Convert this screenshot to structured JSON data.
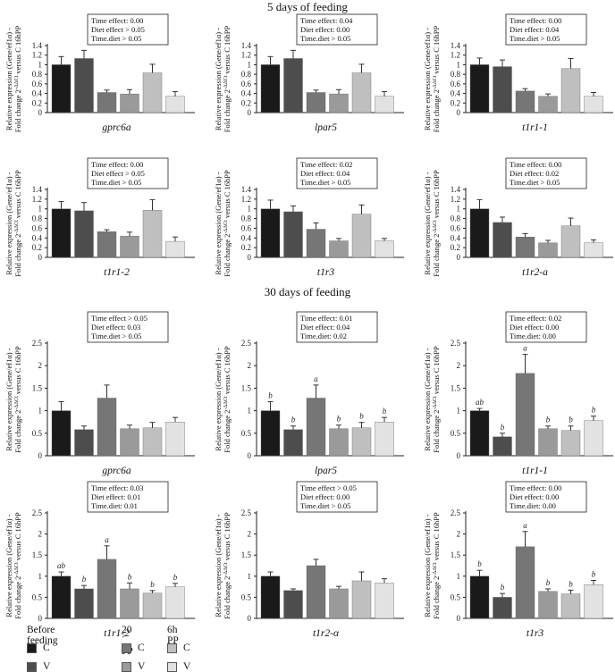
{
  "section_titles": [
    "5 days of feeding",
    "30 days of feeding"
  ],
  "y_label_line1": "Relative expression (Gene/ef1α) -",
  "y_label_line2": "Fold change 2",
  "y_label_sup": "-ΔΔCt",
  "y_label_tail": " versus C 16hPP",
  "colors": [
    "#1a1a1a",
    "#4d4d4d",
    "#767676",
    "#9a9a9a",
    "#bfbfbf",
    "#e2e2e2"
  ],
  "legend": {
    "groups": [
      "Before feeding",
      "20´ PP",
      "6h PP"
    ],
    "items": [
      "C",
      "V"
    ]
  },
  "chart_data": [
    {
      "type": "bar",
      "title": "gprc6a",
      "section": "5 days",
      "categories": [
        "C before",
        "V before",
        "C 20´PP",
        "V 20´PP",
        "C 6hPP",
        "V 6hPP"
      ],
      "values": [
        1.0,
        1.13,
        0.42,
        0.39,
        0.83,
        0.34
      ],
      "errors": [
        0.17,
        0.17,
        0.05,
        0.09,
        0.18,
        0.1
      ],
      "letters": [],
      "ylim": [
        0,
        1.4
      ],
      "yticks": [
        "0",
        "0.2",
        "0.4",
        "0.6",
        "0.8",
        "1",
        "1.2",
        "1.4"
      ],
      "stats": [
        "Time effect: 0.00",
        "Diet effect > 0.05",
        "Time.diet > 0.05"
      ]
    },
    {
      "type": "bar",
      "title": "lpar5",
      "section": "5 days",
      "categories": [
        "C before",
        "V before",
        "C 20´PP",
        "V 20´PP",
        "C 6hPP",
        "V 6hPP"
      ],
      "values": [
        1.0,
        1.13,
        0.42,
        0.39,
        0.83,
        0.34
      ],
      "errors": [
        0.17,
        0.17,
        0.05,
        0.09,
        0.18,
        0.1
      ],
      "letters": [],
      "ylim": [
        0,
        1.4
      ],
      "yticks": [
        "0",
        "0.2",
        "0.4",
        "0.6",
        "0.8",
        "1",
        "1.2",
        "1.4"
      ],
      "stats": [
        "Time effect: 0.04",
        "Diet effect: 0.00",
        "Time.diet > 0.05"
      ]
    },
    {
      "type": "bar",
      "title": "t1r1-1",
      "section": "5 days",
      "categories": [
        "C before",
        "V before",
        "C 20´PP",
        "V 20´PP",
        "C 6hPP",
        "V 6hPP"
      ],
      "values": [
        1.0,
        0.96,
        0.45,
        0.34,
        0.92,
        0.34
      ],
      "errors": [
        0.14,
        0.14,
        0.05,
        0.05,
        0.21,
        0.08
      ],
      "letters": [],
      "ylim": [
        0,
        1.4
      ],
      "yticks": [
        "0",
        "0.2",
        "0.4",
        "0.6",
        "0.8",
        "1",
        "1.2",
        "1.4"
      ],
      "stats": [
        "Time effect: 0.00",
        "Diet effect: 0.04",
        "Time.diet > 0.05"
      ]
    },
    {
      "type": "bar",
      "title": "t1r1-2",
      "section": "5 days",
      "categories": [
        "C before",
        "V before",
        "C 20´PP",
        "V 20´PP",
        "C 6hPP",
        "V 6hPP"
      ],
      "values": [
        1.0,
        0.96,
        0.53,
        0.44,
        0.97,
        0.33
      ],
      "errors": [
        0.15,
        0.17,
        0.04,
        0.08,
        0.22,
        0.09
      ],
      "letters": [],
      "ylim": [
        0,
        1.4
      ],
      "yticks": [
        "0",
        "0.2",
        "0.4",
        "0.6",
        "0.8",
        "1",
        "1.2",
        "1.4"
      ],
      "stats": [
        "Time effect: 0.00",
        "Diet effect > 0.05",
        "Time.diet > 0.05"
      ]
    },
    {
      "type": "bar",
      "title": "t1r3",
      "section": "5 days",
      "categories": [
        "C before",
        "V before",
        "C 20´PP",
        "V 20´PP",
        "C 6hPP",
        "V 6hPP"
      ],
      "values": [
        1.0,
        0.94,
        0.58,
        0.34,
        0.89,
        0.34
      ],
      "errors": [
        0.18,
        0.12,
        0.13,
        0.05,
        0.19,
        0.05
      ],
      "letters": [],
      "ylim": [
        0,
        1.4
      ],
      "yticks": [
        "0",
        "0.2",
        "0.4",
        "0.6",
        "0.8",
        "1",
        "1.2",
        "1.4"
      ],
      "stats": [
        "Time effect: 0.02",
        "Diet effect: 0.04",
        "Time.diet > 0.05"
      ]
    },
    {
      "type": "bar",
      "title": "t1r2-a",
      "section": "5 days",
      "categories": [
        "C before",
        "V before",
        "C 20´PP",
        "V 20´PP",
        "C 6hPP",
        "V 6hPP"
      ],
      "values": [
        1.0,
        0.72,
        0.42,
        0.3,
        0.65,
        0.3
      ],
      "errors": [
        0.19,
        0.11,
        0.07,
        0.05,
        0.16,
        0.06
      ],
      "letters": [],
      "ylim": [
        0,
        1.4
      ],
      "yticks": [
        "0",
        "0.2",
        "0.4",
        "0.6",
        "0.8",
        "1",
        "1.2",
        "1.4"
      ],
      "stats": [
        "Time effect: 0.00",
        "Diet effect: 0.02",
        "Time.diet > 0.05"
      ]
    },
    {
      "type": "bar",
      "title": "gprc6a",
      "section": "30 days",
      "categories": [
        "C before",
        "V before",
        "C 20´PP",
        "V 20´PP",
        "C 6hPP",
        "V 6hPP"
      ],
      "values": [
        1.0,
        0.58,
        1.28,
        0.6,
        0.62,
        0.75
      ],
      "errors": [
        0.2,
        0.08,
        0.29,
        0.08,
        0.12,
        0.1
      ],
      "letters": [],
      "ylim": [
        0,
        2.5
      ],
      "yticks": [
        "0",
        "0.5",
        "1",
        "1.5",
        "2",
        "2.5"
      ],
      "stats": [
        "Time effect > 0.05",
        "Diet effect: 0.03",
        "Time.diet > 0.05"
      ]
    },
    {
      "type": "bar",
      "title": "lpar5",
      "section": "30 days",
      "categories": [
        "C before",
        "V before",
        "C 20´PP",
        "V 20´PP",
        "C 6hPP",
        "V 6hPP"
      ],
      "values": [
        1.0,
        0.58,
        1.28,
        0.6,
        0.62,
        0.75
      ],
      "errors": [
        0.2,
        0.08,
        0.29,
        0.08,
        0.12,
        0.1
      ],
      "letters": [
        "b",
        "b",
        "a",
        "b",
        "b",
        "b"
      ],
      "ylim": [
        0,
        2.5
      ],
      "yticks": [
        "0",
        "0.5",
        "1",
        "1.5",
        "2",
        "2.5"
      ],
      "stats": [
        "Time effect: 0.01",
        "Diet effect: 0.04",
        "Time.diet: 0.02"
      ]
    },
    {
      "type": "bar",
      "title": "t1r1-1",
      "section": "30 days",
      "categories": [
        "C before",
        "V before",
        "C 20´PP",
        "V 20´PP",
        "C 6hPP",
        "V 6hPP"
      ],
      "values": [
        1.0,
        0.42,
        1.83,
        0.6,
        0.56,
        0.78
      ],
      "errors": [
        0.05,
        0.08,
        0.42,
        0.06,
        0.1,
        0.1
      ],
      "letters": [
        "ab",
        "b",
        "a",
        "b",
        "b",
        "b"
      ],
      "ylim": [
        0,
        2.5
      ],
      "yticks": [
        "0",
        "0.5",
        "1",
        "1.5",
        "2",
        "2.5"
      ],
      "stats": [
        "Time effect: 0.02",
        "Diet effect: 0.00",
        "Time.diet: 0.00"
      ]
    },
    {
      "type": "bar",
      "title": "t1r1-2",
      "section": "30 days",
      "categories": [
        "C before",
        "V before",
        "C 20´PP",
        "V 20´PP",
        "C 6hPP",
        "V 6hPP"
      ],
      "values": [
        1.0,
        0.7,
        1.4,
        0.7,
        0.6,
        0.75
      ],
      "errors": [
        0.1,
        0.08,
        0.32,
        0.14,
        0.06,
        0.08
      ],
      "letters": [
        "ab",
        "b",
        "a",
        "b",
        "b",
        "b"
      ],
      "ylim": [
        0,
        2.5
      ],
      "yticks": [
        "0",
        "0.5",
        "1",
        "1.5",
        "2",
        "2.5"
      ],
      "stats": [
        "Time effect: 0.03",
        "Diet effect: 0.01",
        "Time.diet: 0.01"
      ]
    },
    {
      "type": "bar",
      "title": "t1r2-α",
      "section": "30 days",
      "categories": [
        "C before",
        "V before",
        "C 20´PP",
        "V 20´PP",
        "C 6hPP",
        "V 6hPP"
      ],
      "values": [
        1.0,
        0.66,
        1.25,
        0.7,
        0.89,
        0.84
      ],
      "errors": [
        0.1,
        0.04,
        0.15,
        0.06,
        0.21,
        0.1
      ],
      "letters": [],
      "ylim": [
        0,
        2.5
      ],
      "yticks": [
        "0",
        "0.5",
        "1",
        "1.5",
        "2",
        "2.5"
      ],
      "stats": [
        "Time effect > 0.05",
        "Diet effect: 0.00",
        "Time.diet > 0.05"
      ]
    },
    {
      "type": "bar",
      "title": "t1r3",
      "section": "30 days",
      "categories": [
        "C before",
        "V before",
        "C 20´PP",
        "V 20´PP",
        "C 6hPP",
        "V 6hPP"
      ],
      "values": [
        1.0,
        0.5,
        1.7,
        0.64,
        0.58,
        0.8
      ],
      "errors": [
        0.14,
        0.09,
        0.36,
        0.06,
        0.09,
        0.1
      ],
      "letters": [
        "b",
        "b",
        "a",
        "b",
        "b",
        "b"
      ],
      "ylim": [
        0,
        2.5
      ],
      "yticks": [
        "0",
        "0.5",
        "1",
        "1.5",
        "2",
        "2.5"
      ],
      "stats": [
        "Time effect: 0.00",
        "Diet effect: 0.00",
        "Time.diet: 0.00"
      ]
    }
  ]
}
